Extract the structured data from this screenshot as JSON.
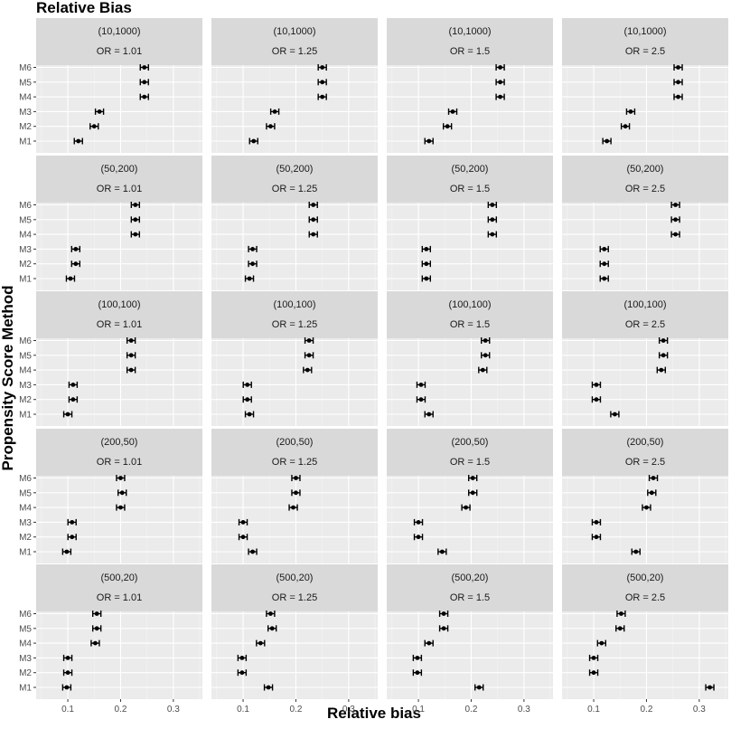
{
  "chart_data": {
    "type": "scatter",
    "title": "Relative Bias",
    "xlabel": "Relative bias",
    "ylabel": "Propensity Score Method",
    "methods": [
      "M1",
      "M2",
      "M3",
      "M4",
      "M5",
      "M6"
    ],
    "xlim": [
      0.04,
      0.355
    ],
    "xticks": [
      0.1,
      0.2,
      0.3
    ],
    "xtick_labels": [
      "0.1",
      "0.2",
      "0.3"
    ],
    "grid": true,
    "error_bars": true,
    "column_labels": [
      "OR = 1.01",
      "OR = 1.25",
      "OR = 1.5",
      "OR = 2.5"
    ],
    "row_labels": [
      "(10,1000)",
      "(50,200)",
      "(100,100)",
      "(200,50)",
      "(500,20)"
    ],
    "panels": [
      [
        {
          "values": [
            0.12,
            0.15,
            0.16,
            0.245,
            0.245,
            0.245
          ]
        },
        {
          "values": [
            0.12,
            0.152,
            0.16,
            0.25,
            0.25,
            0.25
          ]
        },
        {
          "values": [
            0.12,
            0.155,
            0.165,
            0.255,
            0.255,
            0.255
          ]
        },
        {
          "values": [
            0.125,
            0.16,
            0.17,
            0.26,
            0.26,
            0.26
          ]
        }
      ],
      [
        {
          "values": [
            0.105,
            0.115,
            0.115,
            0.228,
            0.228,
            0.228
          ]
        },
        {
          "values": [
            0.112,
            0.118,
            0.118,
            0.233,
            0.233,
            0.233
          ]
        },
        {
          "values": [
            0.115,
            0.115,
            0.115,
            0.24,
            0.24,
            0.24
          ]
        },
        {
          "values": [
            0.12,
            0.12,
            0.12,
            0.255,
            0.255,
            0.255
          ]
        }
      ],
      [
        {
          "values": [
            0.1,
            0.11,
            0.11,
            0.22,
            0.22,
            0.22
          ]
        },
        {
          "values": [
            0.112,
            0.108,
            0.108,
            0.222,
            0.225,
            0.225
          ]
        },
        {
          "values": [
            0.12,
            0.105,
            0.105,
            0.222,
            0.227,
            0.227
          ]
        },
        {
          "values": [
            0.14,
            0.105,
            0.105,
            0.228,
            0.232,
            0.232
          ]
        }
      ],
      [
        {
          "values": [
            0.098,
            0.108,
            0.108,
            0.2,
            0.203,
            0.2
          ]
        },
        {
          "values": [
            0.118,
            0.1,
            0.1,
            0.195,
            0.2,
            0.2
          ]
        },
        {
          "values": [
            0.145,
            0.1,
            0.1,
            0.19,
            0.203,
            0.203
          ]
        },
        {
          "values": [
            0.18,
            0.105,
            0.105,
            0.2,
            0.21,
            0.213
          ]
        }
      ],
      [
        {
          "values": [
            0.098,
            0.1,
            0.1,
            0.152,
            0.155,
            0.155
          ]
        },
        {
          "values": [
            0.148,
            0.098,
            0.098,
            0.133,
            0.155,
            0.152
          ]
        },
        {
          "values": [
            0.215,
            0.098,
            0.098,
            0.12,
            0.148,
            0.148
          ]
        },
        {
          "values": [
            0.32,
            0.1,
            0.1,
            0.115,
            0.15,
            0.152
          ]
        }
      ]
    ]
  }
}
